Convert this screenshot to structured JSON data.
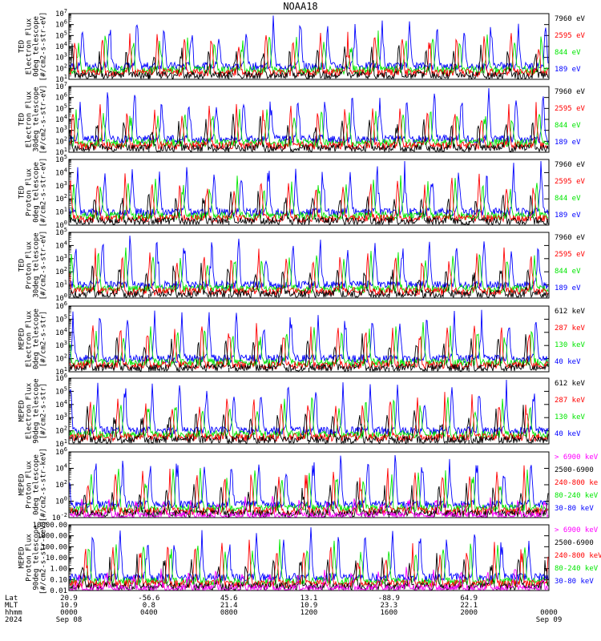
{
  "title": "NOAA18",
  "colors": {
    "black": "#000000",
    "blue": "#0000ff",
    "red": "#ff0000",
    "green": "#00e600",
    "magenta": "#ff00ff"
  },
  "chart_data": [
    {
      "type": "line",
      "ylabel": [
        "TED",
        "Electron Flux",
        "0deg telescope",
        "[#/cm2-s-str-eV]"
      ],
      "yticks": [
        "10^1",
        "10^2",
        "10^3",
        "10^4",
        "10^5",
        "10^6",
        "10^7"
      ],
      "series": [
        {
          "name": "7960 eV",
          "color": "black"
        },
        {
          "name": "2595 eV",
          "color": "red"
        },
        {
          "name": "844 eV",
          "color": "green"
        },
        {
          "name": "189 eV",
          "color": "blue"
        }
      ]
    },
    {
      "type": "line",
      "ylabel": [
        "TED",
        "Electron Flux",
        "30deg telescope",
        "[#/cm2-s-str-eV]"
      ],
      "yticks": [
        "10^1",
        "10^2",
        "10^3",
        "10^4",
        "10^5",
        "10^6",
        "10^7"
      ],
      "series": [
        {
          "name": "7960 eV",
          "color": "black"
        },
        {
          "name": "2595 eV",
          "color": "red"
        },
        {
          "name": "844 eV",
          "color": "green"
        },
        {
          "name": "189 eV",
          "color": "blue"
        }
      ]
    },
    {
      "type": "line",
      "ylabel": [
        "TED",
        "Proton Flux",
        "0deg telescope",
        "[#/cm2-s-str-eV]"
      ],
      "yticks": [
        "10^0",
        "10^1",
        "10^2",
        "10^3",
        "10^4",
        "10^5"
      ],
      "series": [
        {
          "name": "7960 eV",
          "color": "black"
        },
        {
          "name": "2595 eV",
          "color": "red"
        },
        {
          "name": "844 eV",
          "color": "green"
        },
        {
          "name": "189 eV",
          "color": "blue"
        }
      ]
    },
    {
      "type": "line",
      "ylabel": [
        "TED",
        "Proton Flux",
        "30deg telescope",
        "[#/cm2-s-str-eV]"
      ],
      "yticks": [
        "10^0",
        "10^1",
        "10^2",
        "10^3",
        "10^4",
        "10^5"
      ],
      "series": [
        {
          "name": "7960 eV",
          "color": "black"
        },
        {
          "name": "2595 eV",
          "color": "red"
        },
        {
          "name": "844 eV",
          "color": "green"
        },
        {
          "name": "189 eV",
          "color": "blue"
        }
      ]
    },
    {
      "type": "line",
      "ylabel": [
        "MEPED",
        "Electron Flux",
        "0deg telescope",
        "[#/cm2-s-str]"
      ],
      "yticks": [
        "10^1",
        "10^2",
        "10^3",
        "10^4",
        "10^5",
        "10^6"
      ],
      "series": [
        {
          "name": "612 keV",
          "color": "black"
        },
        {
          "name": "287 keV",
          "color": "red"
        },
        {
          "name": "130 keV",
          "color": "green"
        },
        {
          "name": "40 keV",
          "color": "blue"
        }
      ]
    },
    {
      "type": "line",
      "ylabel": [
        "MEPED",
        "Electron Flux",
        "90deg telescope",
        "[#/cm2-s-str]"
      ],
      "yticks": [
        "10^1",
        "10^2",
        "10^3",
        "10^4",
        "10^5",
        "10^6"
      ],
      "series": [
        {
          "name": "612 keV",
          "color": "black"
        },
        {
          "name": "287 keV",
          "color": "red"
        },
        {
          "name": "130 keV",
          "color": "green"
        },
        {
          "name": "40 keV",
          "color": "blue"
        }
      ]
    },
    {
      "type": "line",
      "ylabel": [
        "MEPED",
        "Proton Flux",
        "0deg telescope",
        "[#/cm2-s-str-keV]"
      ],
      "yticks": [
        "10^-2",
        "10^0",
        "10^2",
        "10^4",
        "10^6"
      ],
      "series": [
        {
          "name": "> 6900 keV",
          "color": "magenta"
        },
        {
          "name": "2500-6900",
          "color": "black"
        },
        {
          "name": "240-800 ke",
          "color": "red"
        },
        {
          "name": "80-240 keV",
          "color": "green"
        },
        {
          "name": "30-80 keV",
          "color": "blue"
        }
      ]
    },
    {
      "type": "line",
      "ylabel": [
        "MEPED",
        "Proton Flux",
        "90deg telescope",
        "[#/cm2-s-str-keV]"
      ],
      "yticks": [
        "0.01",
        "0.10",
        "1.00",
        "10.00",
        "100.00",
        "1000.00",
        "10000.00"
      ],
      "series": [
        {
          "name": "> 6900 keV",
          "color": "magenta"
        },
        {
          "name": "2500-6900",
          "color": "black"
        },
        {
          "name": "240-800 keV",
          "color": "red"
        },
        {
          "name": "80-240 keV",
          "color": "green"
        },
        {
          "name": "30-80 keV",
          "color": "blue"
        }
      ]
    }
  ],
  "xaxis": {
    "row_labels": [
      "Lat",
      "MLT",
      "hhmm",
      "2024"
    ],
    "ticks": [
      {
        "lat": "20.9",
        "mlt": "10.9",
        "hhmm": "0000",
        "date": "Sep 08"
      },
      {
        "lat": "-56.6",
        "mlt": "0.8",
        "hhmm": "0400",
        "date": ""
      },
      {
        "lat": "45.6",
        "mlt": "21.4",
        "hhmm": "0800",
        "date": ""
      },
      {
        "lat": "13.1",
        "mlt": "10.9",
        "hhmm": "1200",
        "date": ""
      },
      {
        "lat": "-88.9",
        "mlt": "23.3",
        "hhmm": "1600",
        "date": ""
      },
      {
        "lat": "64.9",
        "mlt": "22.1",
        "hhmm": "2000",
        "date": ""
      },
      {
        "lat": "",
        "mlt": "",
        "hhmm": "0000",
        "date": "Sep 09"
      }
    ]
  }
}
